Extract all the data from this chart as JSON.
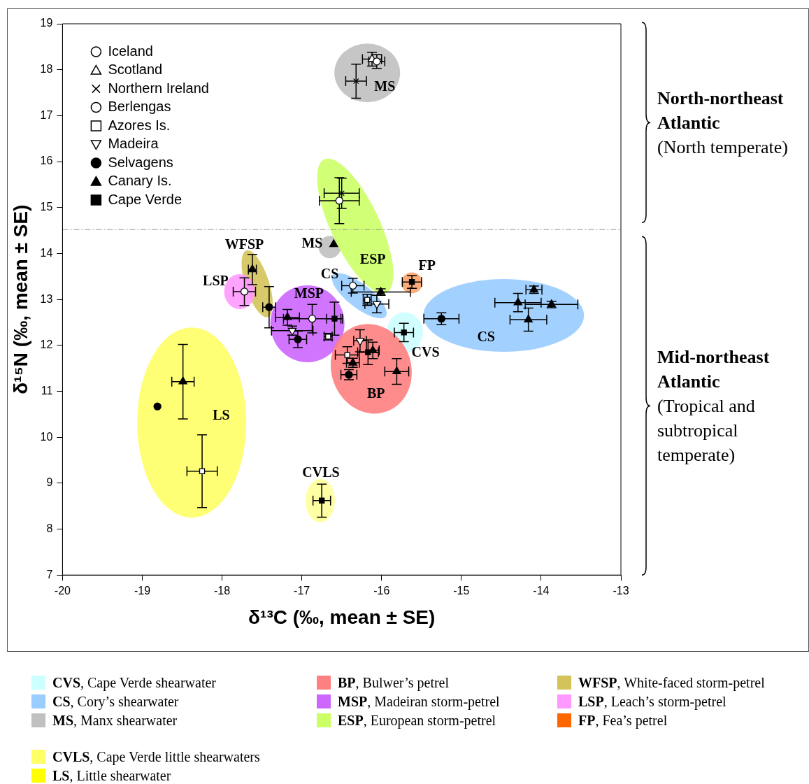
{
  "chart_data": {
    "type": "scatter",
    "xlabel": "δ¹³C (‰, mean ± SE)",
    "ylabel": "δ¹⁵N (‰, mean ± SE)",
    "xlim": [
      -20,
      -13
    ],
    "xticks": [
      -20,
      -19,
      -18,
      -17,
      -16,
      -15,
      -14,
      -13
    ],
    "ylim": [
      7,
      19
    ],
    "yticks": [
      7,
      8,
      9,
      10,
      11,
      12,
      13,
      14,
      15,
      16,
      17,
      18,
      19
    ],
    "grid": false,
    "legend": "top left",
    "ref_lines": [
      {
        "axis": "y",
        "value": 14.52,
        "color": "#999999",
        "line_style": "dashed"
      }
    ],
    "series": [
      {
        "name": "Iceland",
        "marker": "circle",
        "color": "#ffffff",
        "x": [
          -16.53,
          -16.06,
          -17.72
        ],
        "values": [
          15.15,
          18.18,
          13.17
        ],
        "xerrors": [
          0.25,
          0.1,
          0.14
        ],
        "errors": [
          0.5,
          0.15,
          0.3
        ]
      },
      {
        "name": "Scotland",
        "marker": "triangle",
        "color": "#ffffff",
        "x": [
          -16.12
        ],
        "values": [
          18.23
        ],
        "xerrors": [
          0.12
        ],
        "errors": [
          0.15
        ]
      },
      {
        "name": "Northern Ireland",
        "marker": "cross",
        "color": "#000000",
        "x": [
          -16.32,
          -16.5
        ],
        "values": [
          17.75,
          15.31
        ],
        "xerrors": [
          0.13,
          0.22
        ],
        "errors": [
          0.37,
          0.33
        ]
      },
      {
        "name": "Berlengas",
        "marker": "circle",
        "color": "#ffffff",
        "x": [
          -16.87,
          -16.36
        ],
        "values": [
          12.58,
          13.3
        ],
        "xerrors": [
          0.36,
          0.14
        ],
        "errors": [
          0.31,
          0.16
        ]
      },
      {
        "name": "Azores Is.",
        "marker": "square",
        "color": "#ffffff",
        "x": [
          -16.67,
          -16.43,
          -16.18,
          -18.25
        ],
        "values": [
          12.19,
          11.79,
          12.99,
          9.26
        ],
        "xerrors": [
          0.05,
          0.15,
          0.05,
          0.19
        ],
        "errors": [
          0.07,
          0.18,
          0.12,
          0.79
        ]
      },
      {
        "name": "Madeira",
        "marker": "triangle-down",
        "color": "#ffffff",
        "x": [
          -17.12,
          -16.06,
          -16.27
        ],
        "values": [
          12.32,
          12.9,
          12.1
        ],
        "xerrors": [
          0.26,
          0.15,
          0.08
        ],
        "errors": [
          0.1,
          0.19,
          0.24
        ]
      },
      {
        "name": "Selvagens",
        "marker": "circle",
        "color": "#000000",
        "x": [
          -17.41,
          -17.05,
          -16.41,
          -15.25,
          -18.81
        ],
        "values": [
          12.83,
          12.13,
          11.36,
          12.58,
          10.67
        ],
        "xerrors": [
          0.08,
          0.11,
          0.1,
          0.22,
          null
        ],
        "errors": [
          0.45,
          0.18,
          0.11,
          0.13,
          null
        ]
      },
      {
        "name": "Canary Is.",
        "marker": "triangle",
        "color": "#000000",
        "x": [
          -17.62,
          -17.18,
          -16.6,
          -16.01,
          -16.36,
          -16.11,
          -15.81,
          -14.29,
          -14.09,
          -13.87,
          -14.16,
          -18.49
        ],
        "values": [
          13.65,
          12.61,
          14.2,
          13.16,
          11.62,
          11.89,
          11.43,
          12.93,
          13.21,
          12.89,
          12.56,
          11.21
        ],
        "xerrors": [
          0.05,
          0.15,
          null,
          0.37,
          0.08,
          0.08,
          0.15,
          0.29,
          0.1,
          0.33,
          0.23,
          0.14
        ],
        "errors": [
          0.33,
          0.17,
          null,
          0.07,
          0.1,
          0.18,
          0.28,
          0.2,
          0.08,
          0.07,
          0.25,
          0.81
        ]
      },
      {
        "name": "Cape Verde",
        "marker": "square",
        "color": "#000000",
        "x": [
          -16.59,
          -15.62,
          -15.72,
          -16.17,
          -16.75
        ],
        "values": [
          12.58,
          13.38,
          12.28,
          11.85,
          8.62
        ],
        "xerrors": [
          0.1,
          0.12,
          0.12,
          0.13,
          0.11
        ],
        "errors": [
          0.36,
          0.14,
          0.2,
          0.27,
          0.36
        ]
      }
    ],
    "annotations": [
      "North-northeast Atlantic",
      "(North temperate)",
      "Mid-northeast Atlantic",
      "(Tropical and subtropical temperate)",
      "CVS, Cape Verde shearwater",
      "CS, Cory’s shearwater",
      "MS, Manx shearwater",
      "BP, Bulwer’s petrel",
      "MSP, Madeiran storm-petrel",
      "ESP, European storm-petrel",
      "WFSP, White-faced storm-petrel",
      "LSP, Leach’s storm-petrel",
      "FP, Fea’s petrel",
      "CVLS, Cape Verde little shearwaters",
      "LS, Little shearwater",
      "MS",
      "MS",
      "ESP",
      "FP",
      "CS",
      "WFSP",
      "LSP",
      "MSP",
      "CS",
      "CVS",
      "BP",
      "LS",
      "CVLS"
    ]
  }
}
